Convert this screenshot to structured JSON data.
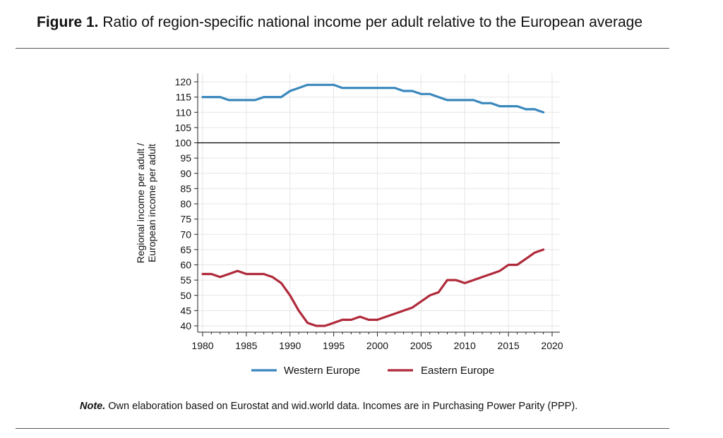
{
  "figure": {
    "label": "Figure 1.",
    "title": "Ratio of region-specific national income per adult relative to the European average"
  },
  "note": {
    "label": "Note.",
    "text": "Own elaboration based on Eurostat and wid.world data. Incomes are in Purchasing Power Parity (PPP)."
  },
  "chart_data": {
    "type": "line",
    "title": "Ratio of region-specific national income per adult relative to the European average",
    "xlabel": "",
    "ylabel": [
      "Regional income per adult /",
      "European income per adult"
    ],
    "xlim": [
      1980,
      2020
    ],
    "ylim": [
      40,
      120
    ],
    "x_ticks": [
      1980,
      1985,
      1990,
      1995,
      2000,
      2005,
      2010,
      2015,
      2020
    ],
    "y_ticks": [
      40,
      45,
      50,
      55,
      60,
      65,
      70,
      75,
      80,
      85,
      90,
      95,
      100,
      105,
      110,
      115,
      120
    ],
    "reference_line": 100,
    "grid": true,
    "legend_position": "bottom",
    "x": [
      1980,
      1981,
      1982,
      1983,
      1984,
      1985,
      1986,
      1987,
      1988,
      1989,
      1990,
      1991,
      1992,
      1993,
      1994,
      1995,
      1996,
      1997,
      1998,
      1999,
      2000,
      2001,
      2002,
      2003,
      2004,
      2005,
      2006,
      2007,
      2008,
      2009,
      2010,
      2011,
      2012,
      2013,
      2014,
      2015,
      2016,
      2017,
      2018,
      2019
    ],
    "series": [
      {
        "name": "Western Europe",
        "color": "#3a88bd",
        "values": [
          115,
          115,
          115,
          114,
          114,
          114,
          114,
          115,
          115,
          115,
          117,
          118,
          119,
          119,
          119,
          119,
          118,
          118,
          118,
          118,
          118,
          118,
          118,
          117,
          117,
          116,
          116,
          115,
          114,
          114,
          114,
          114,
          113,
          113,
          112,
          112,
          112,
          111,
          111,
          110
        ]
      },
      {
        "name": "Eastern Europe",
        "color": "#b02a3b",
        "values": [
          57,
          57,
          56,
          57,
          58,
          57,
          57,
          57,
          56,
          54,
          50,
          45,
          41,
          40,
          40,
          41,
          42,
          42,
          43,
          42,
          42,
          43,
          44,
          45,
          46,
          48,
          50,
          51,
          55,
          55,
          54,
          55,
          56,
          57,
          58,
          60,
          60,
          62,
          64,
          65
        ]
      }
    ]
  }
}
